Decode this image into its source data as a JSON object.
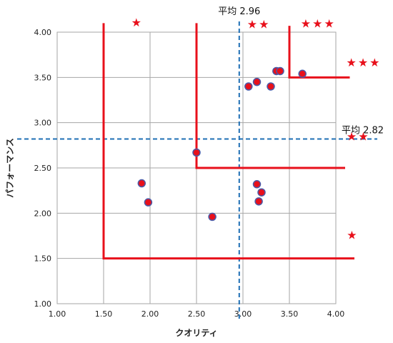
{
  "chart_data": {
    "type": "scatter",
    "title": "",
    "xlabel": "クオリティ",
    "ylabel": "パフォーマンス",
    "xlim": [
      1.0,
      4.0
    ],
    "ylim": [
      1.0,
      4.0
    ],
    "x_ticks": [
      "1.00",
      "1.50",
      "2.00",
      "2.50",
      "3.00",
      "3.50",
      "4.00"
    ],
    "y_ticks": [
      "1.00",
      "1.50",
      "2.00",
      "2.50",
      "3.00",
      "3.50",
      "4.00"
    ],
    "grid": true,
    "points": [
      {
        "x": 1.91,
        "y": 2.33
      },
      {
        "x": 1.98,
        "y": 2.12
      },
      {
        "x": 2.5,
        "y": 2.67
      },
      {
        "x": 2.67,
        "y": 1.96
      },
      {
        "x": 3.06,
        "y": 3.4
      },
      {
        "x": 3.15,
        "y": 3.45
      },
      {
        "x": 3.15,
        "y": 2.32
      },
      {
        "x": 3.17,
        "y": 2.13
      },
      {
        "x": 3.2,
        "y": 2.23
      },
      {
        "x": 3.3,
        "y": 3.4
      },
      {
        "x": 3.36,
        "y": 3.57
      },
      {
        "x": 3.4,
        "y": 3.57
      },
      {
        "x": 3.64,
        "y": 3.54
      }
    ],
    "mean_lines": [
      {
        "axis": "x",
        "value": 2.96,
        "label": "平均 2.96"
      },
      {
        "axis": "y",
        "value": 2.82,
        "label": "平均 2.82"
      }
    ],
    "tier_boundaries": [
      {
        "corner_x": 1.5,
        "corner_y": 1.5,
        "x_end": 4.2,
        "y_top": 4.1
      },
      {
        "corner_x": 2.5,
        "corner_y": 2.5,
        "x_end": 4.1,
        "y_top": 4.1
      },
      {
        "corner_x": 3.5,
        "corner_y": 3.5,
        "x_end": 4.15,
        "y_top": 4.07
      }
    ],
    "ratings": [
      {
        "stars": "★",
        "x": 1.86,
        "y": 4.11
      },
      {
        "stars": "★★",
        "x": 3.17,
        "y": 4.09
      },
      {
        "stars": "★★★",
        "x": 3.81,
        "y": 4.1
      },
      {
        "stars": "★★★",
        "x": 4.3,
        "y": 3.67
      },
      {
        "stars": "★★",
        "x": 4.24,
        "y": 2.85
      },
      {
        "stars": "★",
        "x": 4.18,
        "y": 1.76
      }
    ],
    "colors": {
      "points_fill": "#e8101b",
      "points_stroke": "#4a5aa8",
      "boundary": "#e8101b",
      "mean_line": "#1f6fb5",
      "grid": "#a6a6a6",
      "stars": "#e8101b"
    }
  }
}
